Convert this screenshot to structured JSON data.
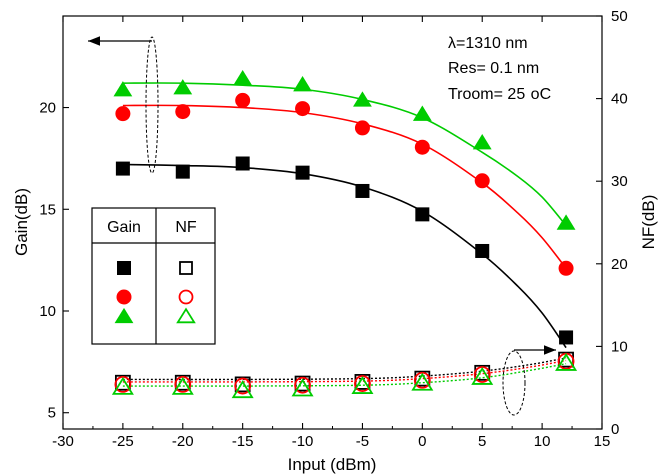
{
  "chart_data": {
    "type": "scatter",
    "xlabel": "Input (dBm)",
    "ylabel_left": "Gain(dB)",
    "ylabel_right": "NF(dB)",
    "xlim": [
      -30,
      15
    ],
    "ylim_left": [
      4.2,
      24.5
    ],
    "ylim_right": [
      0,
      50
    ],
    "x_ticks": [
      -30,
      -25,
      -20,
      -15,
      -10,
      -5,
      0,
      5,
      10,
      15
    ],
    "y_left_ticks": [
      5,
      10,
      15,
      20
    ],
    "y_right_ticks": [
      0,
      10,
      20,
      30,
      40,
      50
    ],
    "annotations": {
      "wavelength": "λ=1310 nm",
      "res": "Res= 0.1 nm",
      "troom_main": "Troom= 25 ",
      "troom_unit": "oC"
    },
    "legend": {
      "header_gain": "Gain",
      "header_nf": "NF",
      "rows": [
        {
          "color": "#000000",
          "gain_marker": "filled-square",
          "nf_marker": "open-square"
        },
        {
          "color": "#ff0000",
          "gain_marker": "filled-circle",
          "nf_marker": "open-circle"
        },
        {
          "color": "#00cc00",
          "gain_marker": "filled-triangle",
          "nf_marker": "open-triangle"
        }
      ]
    },
    "x": [
      -25,
      -20,
      -15,
      -10,
      -5,
      0,
      5,
      12
    ],
    "series": [
      {
        "axis": "left",
        "kind": "gain",
        "marker": "square",
        "color": "#000000",
        "values": [
          17.0,
          16.85,
          17.25,
          16.8,
          15.9,
          14.75,
          12.95,
          8.7
        ]
      },
      {
        "axis": "left",
        "kind": "gain",
        "marker": "circle",
        "color": "#ff0000",
        "values": [
          19.7,
          19.8,
          20.35,
          19.95,
          19.0,
          18.05,
          16.4,
          12.1
        ]
      },
      {
        "axis": "left",
        "kind": "gain",
        "marker": "triangle",
        "color": "#00cc00",
        "values": [
          20.85,
          20.95,
          21.4,
          21.1,
          20.35,
          19.65,
          18.25,
          14.3
        ]
      },
      {
        "axis": "right",
        "kind": "nf",
        "marker": "square",
        "color": "#000000",
        "values": [
          5.6,
          5.6,
          5.4,
          5.5,
          5.7,
          6.1,
          6.8,
          8.4
        ]
      },
      {
        "axis": "right",
        "kind": "nf",
        "marker": "circle",
        "color": "#ff0000",
        "values": [
          5.4,
          5.4,
          5.2,
          5.3,
          5.5,
          5.9,
          6.6,
          8.2
        ]
      },
      {
        "axis": "right",
        "kind": "nf",
        "marker": "triangle",
        "color": "#00cc00",
        "values": [
          5.0,
          5.0,
          4.6,
          4.8,
          5.1,
          5.5,
          6.2,
          7.9
        ]
      }
    ],
    "fit_curves": [
      {
        "axis": "left",
        "color": "#000000",
        "style": "solid",
        "points": [
          [
            -25,
            17.2
          ],
          [
            -20,
            17.15
          ],
          [
            -15,
            17.05
          ],
          [
            -10,
            16.75
          ],
          [
            -5,
            16.1
          ],
          [
            0,
            14.9
          ],
          [
            5,
            12.8
          ],
          [
            8,
            11.2
          ],
          [
            10,
            9.9
          ],
          [
            12,
            8.2
          ]
        ]
      },
      {
        "axis": "left",
        "color": "#ff0000",
        "style": "solid",
        "points": [
          [
            -25,
            20.1
          ],
          [
            -20,
            20.1
          ],
          [
            -15,
            20.0
          ],
          [
            -10,
            19.75
          ],
          [
            -5,
            19.2
          ],
          [
            0,
            18.2
          ],
          [
            5,
            16.3
          ],
          [
            8,
            14.8
          ],
          [
            10,
            13.6
          ],
          [
            12,
            12.1
          ]
        ]
      },
      {
        "axis": "left",
        "color": "#00cc00",
        "style": "solid",
        "points": [
          [
            -25,
            21.2
          ],
          [
            -20,
            21.2
          ],
          [
            -15,
            21.1
          ],
          [
            -10,
            20.9
          ],
          [
            -5,
            20.4
          ],
          [
            0,
            19.5
          ],
          [
            5,
            17.8
          ],
          [
            8,
            16.6
          ],
          [
            10,
            15.6
          ],
          [
            12,
            14.2
          ]
        ]
      },
      {
        "axis": "right",
        "color": "#000000",
        "style": "dotted",
        "points": [
          [
            -25,
            6.0
          ],
          [
            -15,
            6.0
          ],
          [
            -5,
            6.1
          ],
          [
            0,
            6.4
          ],
          [
            5,
            7.0
          ],
          [
            9,
            7.8
          ],
          [
            12,
            8.6
          ]
        ]
      },
      {
        "axis": "right",
        "color": "#ff0000",
        "style": "dotted",
        "points": [
          [
            -25,
            5.7
          ],
          [
            -15,
            5.7
          ],
          [
            -5,
            5.8
          ],
          [
            0,
            6.1
          ],
          [
            5,
            6.7
          ],
          [
            9,
            7.5
          ],
          [
            12,
            8.3
          ]
        ]
      },
      {
        "axis": "right",
        "color": "#00cc00",
        "style": "dotted",
        "points": [
          [
            -25,
            5.2
          ],
          [
            -15,
            5.2
          ],
          [
            -5,
            5.3
          ],
          [
            0,
            5.6
          ],
          [
            5,
            6.2
          ],
          [
            9,
            7.1
          ],
          [
            12,
            7.9
          ]
        ]
      }
    ],
    "grid": false
  }
}
